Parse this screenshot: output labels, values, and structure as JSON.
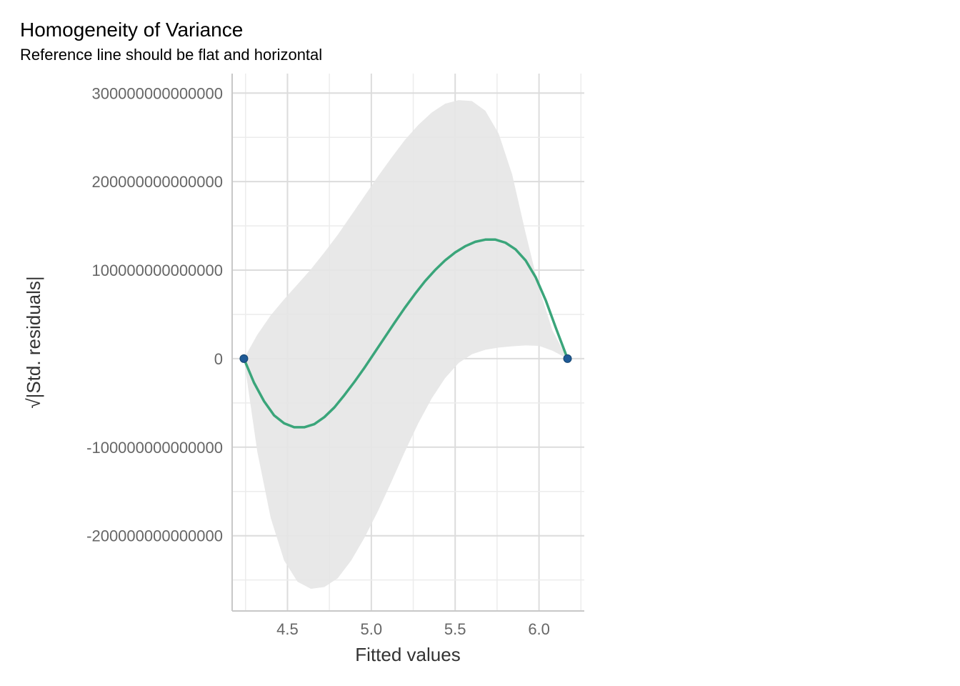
{
  "chart_data": {
    "type": "line",
    "title": "Homogeneity of Variance",
    "subtitle": "Reference line should be flat and horizontal",
    "xlabel": "Fitted values",
    "ylabel": "√|Std. residuals|",
    "xlim": [
      4.17,
      6.27
    ],
    "ylim": [
      -285000000000000,
      322000000000000
    ],
    "x_ticks": [
      4.5,
      5.0,
      5.5,
      6.0
    ],
    "x_tick_labels": [
      "4.5",
      "5.0",
      "5.5",
      "6.0"
    ],
    "y_ticks": [
      300000000000000,
      200000000000000,
      100000000000000,
      0,
      -100000000000000,
      -200000000000000
    ],
    "y_tick_labels": [
      "300000000000000",
      "200000000000000",
      "100000000000000",
      "0",
      "-100000000000000",
      "-200000000000000"
    ],
    "points": [
      {
        "x": 4.24,
        "y": 0
      },
      {
        "x": 6.17,
        "y": 0
      }
    ],
    "smooth_line": {
      "x": [
        4.24,
        4.3,
        4.36,
        4.42,
        4.48,
        4.54,
        4.6,
        4.66,
        4.72,
        4.78,
        4.84,
        4.9,
        4.96,
        5.02,
        5.08,
        5.14,
        5.2,
        5.26,
        5.32,
        5.38,
        5.44,
        5.5,
        5.56,
        5.62,
        5.68,
        5.74,
        5.8,
        5.86,
        5.92,
        5.98,
        6.04,
        6.1,
        6.17
      ],
      "y": [
        0,
        -27000000000000,
        -48000000000000,
        -64000000000000,
        -73000000000000,
        -77500000000000,
        -77500000000000,
        -74000000000000,
        -66000000000000,
        -55000000000000,
        -41000000000000,
        -26000000000000,
        -10000000000000,
        7000000000000,
        24000000000000,
        41000000000000,
        57500000000000,
        73000000000000,
        87500000000000,
        100000000000000,
        111000000000000,
        120000000000000,
        127000000000000,
        132000000000000,
        134500000000000,
        134500000000000,
        131000000000000,
        123500000000000,
        111000000000000,
        92000000000000,
        66000000000000,
        35000000000000,
        0
      ]
    },
    "confidence_band": {
      "x": [
        4.24,
        4.32,
        4.4,
        4.48,
        4.56,
        4.64,
        4.72,
        4.8,
        4.88,
        4.96,
        5.04,
        5.12,
        5.2,
        5.28,
        5.36,
        5.44,
        5.52,
        5.6,
        5.68,
        5.76,
        5.84,
        5.92,
        6.0,
        6.08,
        6.17
      ],
      "upper": [
        0,
        27000000000000,
        49000000000000,
        67000000000000,
        84000000000000,
        101000000000000,
        120000000000000,
        140000000000000,
        162000000000000,
        184000000000000,
        206000000000000,
        227000000000000,
        247000000000000,
        264000000000000,
        278000000000000,
        288000000000000,
        292000000000000,
        291000000000000,
        280000000000000,
        254000000000000,
        208000000000000,
        142000000000000,
        80000000000000,
        32000000000000,
        0
      ],
      "lower": [
        0,
        -105000000000000,
        -180000000000000,
        -228000000000000,
        -252000000000000,
        -260000000000000,
        -258000000000000,
        -248000000000000,
        -228000000000000,
        -202000000000000,
        -172000000000000,
        -139000000000000,
        -105000000000000,
        -73000000000000,
        -45000000000000,
        -22000000000000,
        -5000000000000,
        5000000000000,
        10000000000000,
        12500000000000,
        14000000000000,
        15000000000000,
        14500000000000,
        9000000000000,
        0
      ]
    },
    "colors": {
      "line": "#3aa57a",
      "point": "#1f5a96",
      "band": "#e6e6e6"
    },
    "grid": true,
    "legend": "none"
  }
}
